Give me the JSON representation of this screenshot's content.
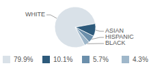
{
  "chart_data": {
    "type": "pie",
    "categories": [
      "WHITE",
      "ASIAN",
      "HISPANIC",
      "BLACK"
    ],
    "values": [
      79.9,
      10.1,
      5.7,
      4.3
    ],
    "value_labels": [
      "79.9%",
      "10.1%",
      "5.7%",
      "4.3%"
    ],
    "colors": [
      "#d9e1e8",
      "#2d5a7b",
      "#6b8fab",
      "#9fb7ca"
    ],
    "legend": "bottom"
  }
}
